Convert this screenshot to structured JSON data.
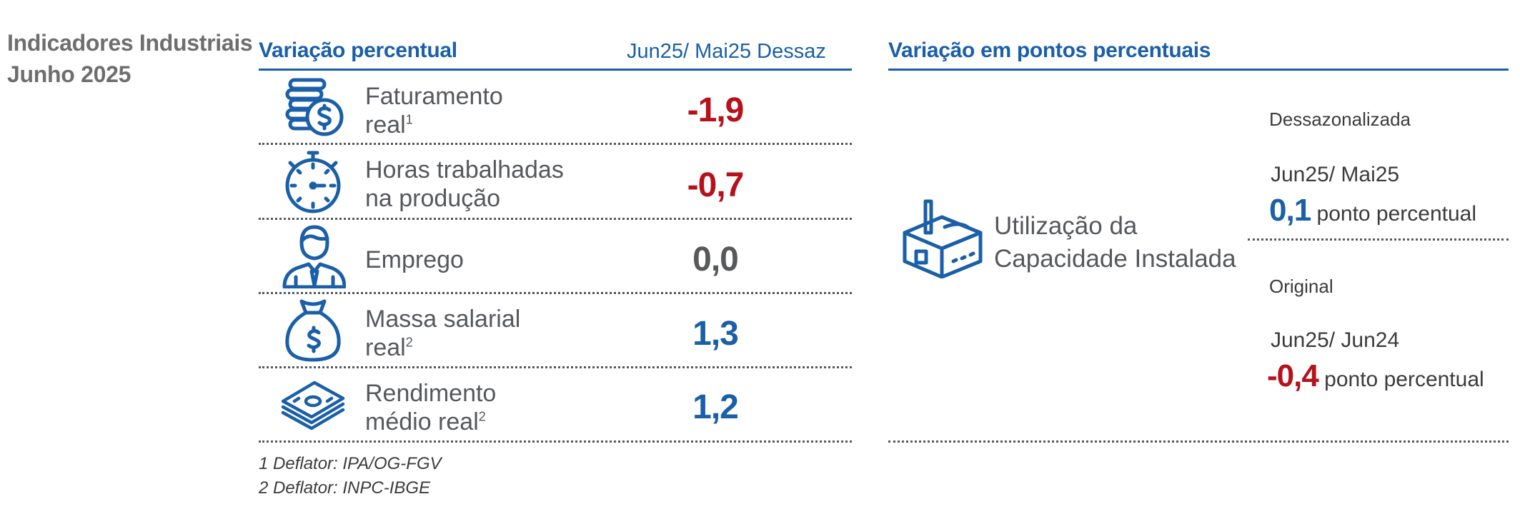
{
  "title": {
    "line1": "Indicadores Industriais",
    "line2": "Junho 2025"
  },
  "left_section": {
    "heading": "Variação percentual",
    "column_header": "Jun25/ Mai25  Dessaz",
    "rows": [
      {
        "icon": "coins-icon",
        "label_line1": "Faturamento",
        "label_line2": "real",
        "sup": "1",
        "value": "-1,9",
        "sign": "negative"
      },
      {
        "icon": "stopwatch-icon",
        "label_line1": "Horas trabalhadas",
        "label_line2": "na produção",
        "sup": "",
        "value": "-0,7",
        "sign": "negative"
      },
      {
        "icon": "person-icon",
        "label_line1": "Emprego",
        "label_line2": "",
        "sup": "",
        "value": "0,0",
        "sign": "zero"
      },
      {
        "icon": "money-bag-icon",
        "label_line1": "Massa salarial",
        "label_line2": "real",
        "sup": "2",
        "value": "1,3",
        "sign": "positive"
      },
      {
        "icon": "banknotes-icon",
        "label_line1": "Rendimento",
        "label_line2": "médio real",
        "sup": "2",
        "value": "1,2",
        "sign": "positive"
      }
    ],
    "footnotes": [
      "1 Deflator: IPA/OG-FGV",
      "2 Deflator: INPC-IBGE"
    ]
  },
  "right_section": {
    "heading": "Variação em pontos percentuais",
    "indicator_line1": "Utilização da",
    "indicator_line2": "Capacidade Instalada",
    "indicator_icon": "factory-icon",
    "seasonal": {
      "label": "Dessazonalizada",
      "period": "Jun25/ Mai25",
      "value": "0,1",
      "unit": "ponto percentual",
      "sign": "positive"
    },
    "original": {
      "label": "Original",
      "period": "Jun25/ Jun24",
      "value": "-0,4",
      "unit": "ponto percentual",
      "sign": "negative"
    }
  },
  "colors": {
    "blue": "#1a5fa8",
    "red": "#b5121b",
    "gray": "#55585c"
  }
}
